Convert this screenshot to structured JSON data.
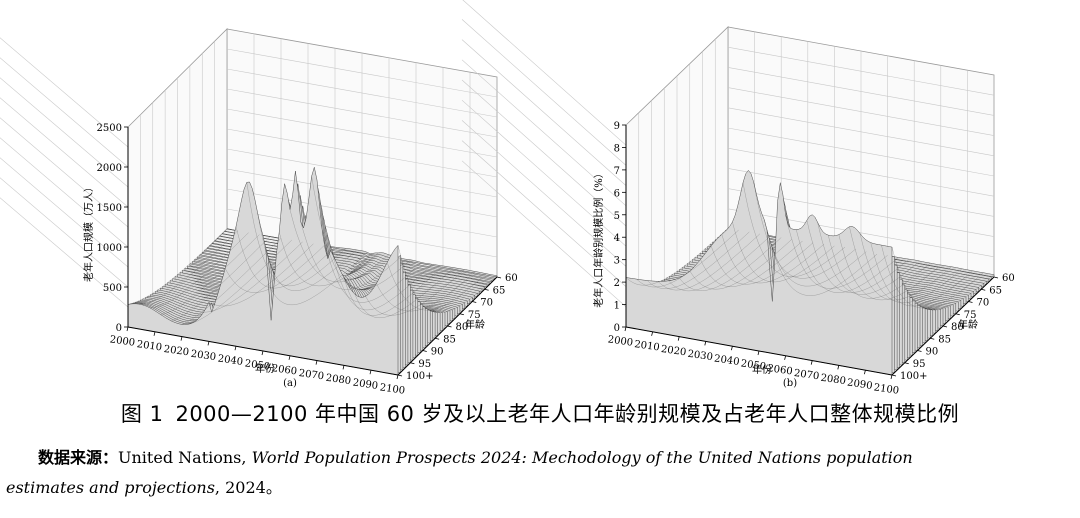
{
  "chart_data": [
    {
      "type": "surface",
      "panel_label": "(a)",
      "zlabel": "老年人口规模（万人）",
      "xlabel": "年份",
      "ylabel": "年龄",
      "x_ticks": [
        "2000",
        "2010",
        "2020",
        "2030",
        "2040",
        "2050",
        "2060",
        "2070",
        "2080",
        "2090",
        "2100"
      ],
      "y_ticks": [
        "60",
        "65",
        "70",
        "75",
        "80",
        "85",
        "90",
        "95",
        "100+"
      ],
      "z_ticks": [
        "0",
        "500",
        "1000",
        "1500",
        "2000",
        "2500"
      ],
      "xlim": [
        2000,
        2100
      ],
      "ylim": [
        60,
        100
      ],
      "zlim": [
        0,
        2500
      ],
      "note": "approximate surface: elderly population size by single year of age and year"
    },
    {
      "type": "surface",
      "panel_label": "(b)",
      "zlabel": "老年人口年龄别规模比例（%）",
      "xlabel": "年份",
      "ylabel": "年龄",
      "x_ticks": [
        "2000",
        "2010",
        "2020",
        "2030",
        "2040",
        "2050",
        "2060",
        "2070",
        "2080",
        "2090",
        "2100"
      ],
      "y_ticks": [
        "60",
        "65",
        "70",
        "75",
        "80",
        "85",
        "90",
        "95",
        "100+"
      ],
      "z_ticks": [
        "0",
        "1",
        "2",
        "3",
        "4",
        "5",
        "6",
        "7",
        "8",
        "9"
      ],
      "xlim": [
        2000,
        2100
      ],
      "ylim": [
        60,
        100
      ],
      "zlim": [
        0,
        9
      ],
      "note": "approximate surface: share of each age in total elderly population"
    }
  ],
  "caption": {
    "number": "图 1",
    "title": "2000—2100 年中国 60 岁及以上老年人口年龄别规模及占老年人口整体规模比例"
  },
  "source": {
    "lead": "数据来源：",
    "org": "United Nations, ",
    "title": "World Population Prospects 2024: Mechodology of the United Nations population",
    "title2": "estimates and projections",
    "year": ", 2024。"
  }
}
